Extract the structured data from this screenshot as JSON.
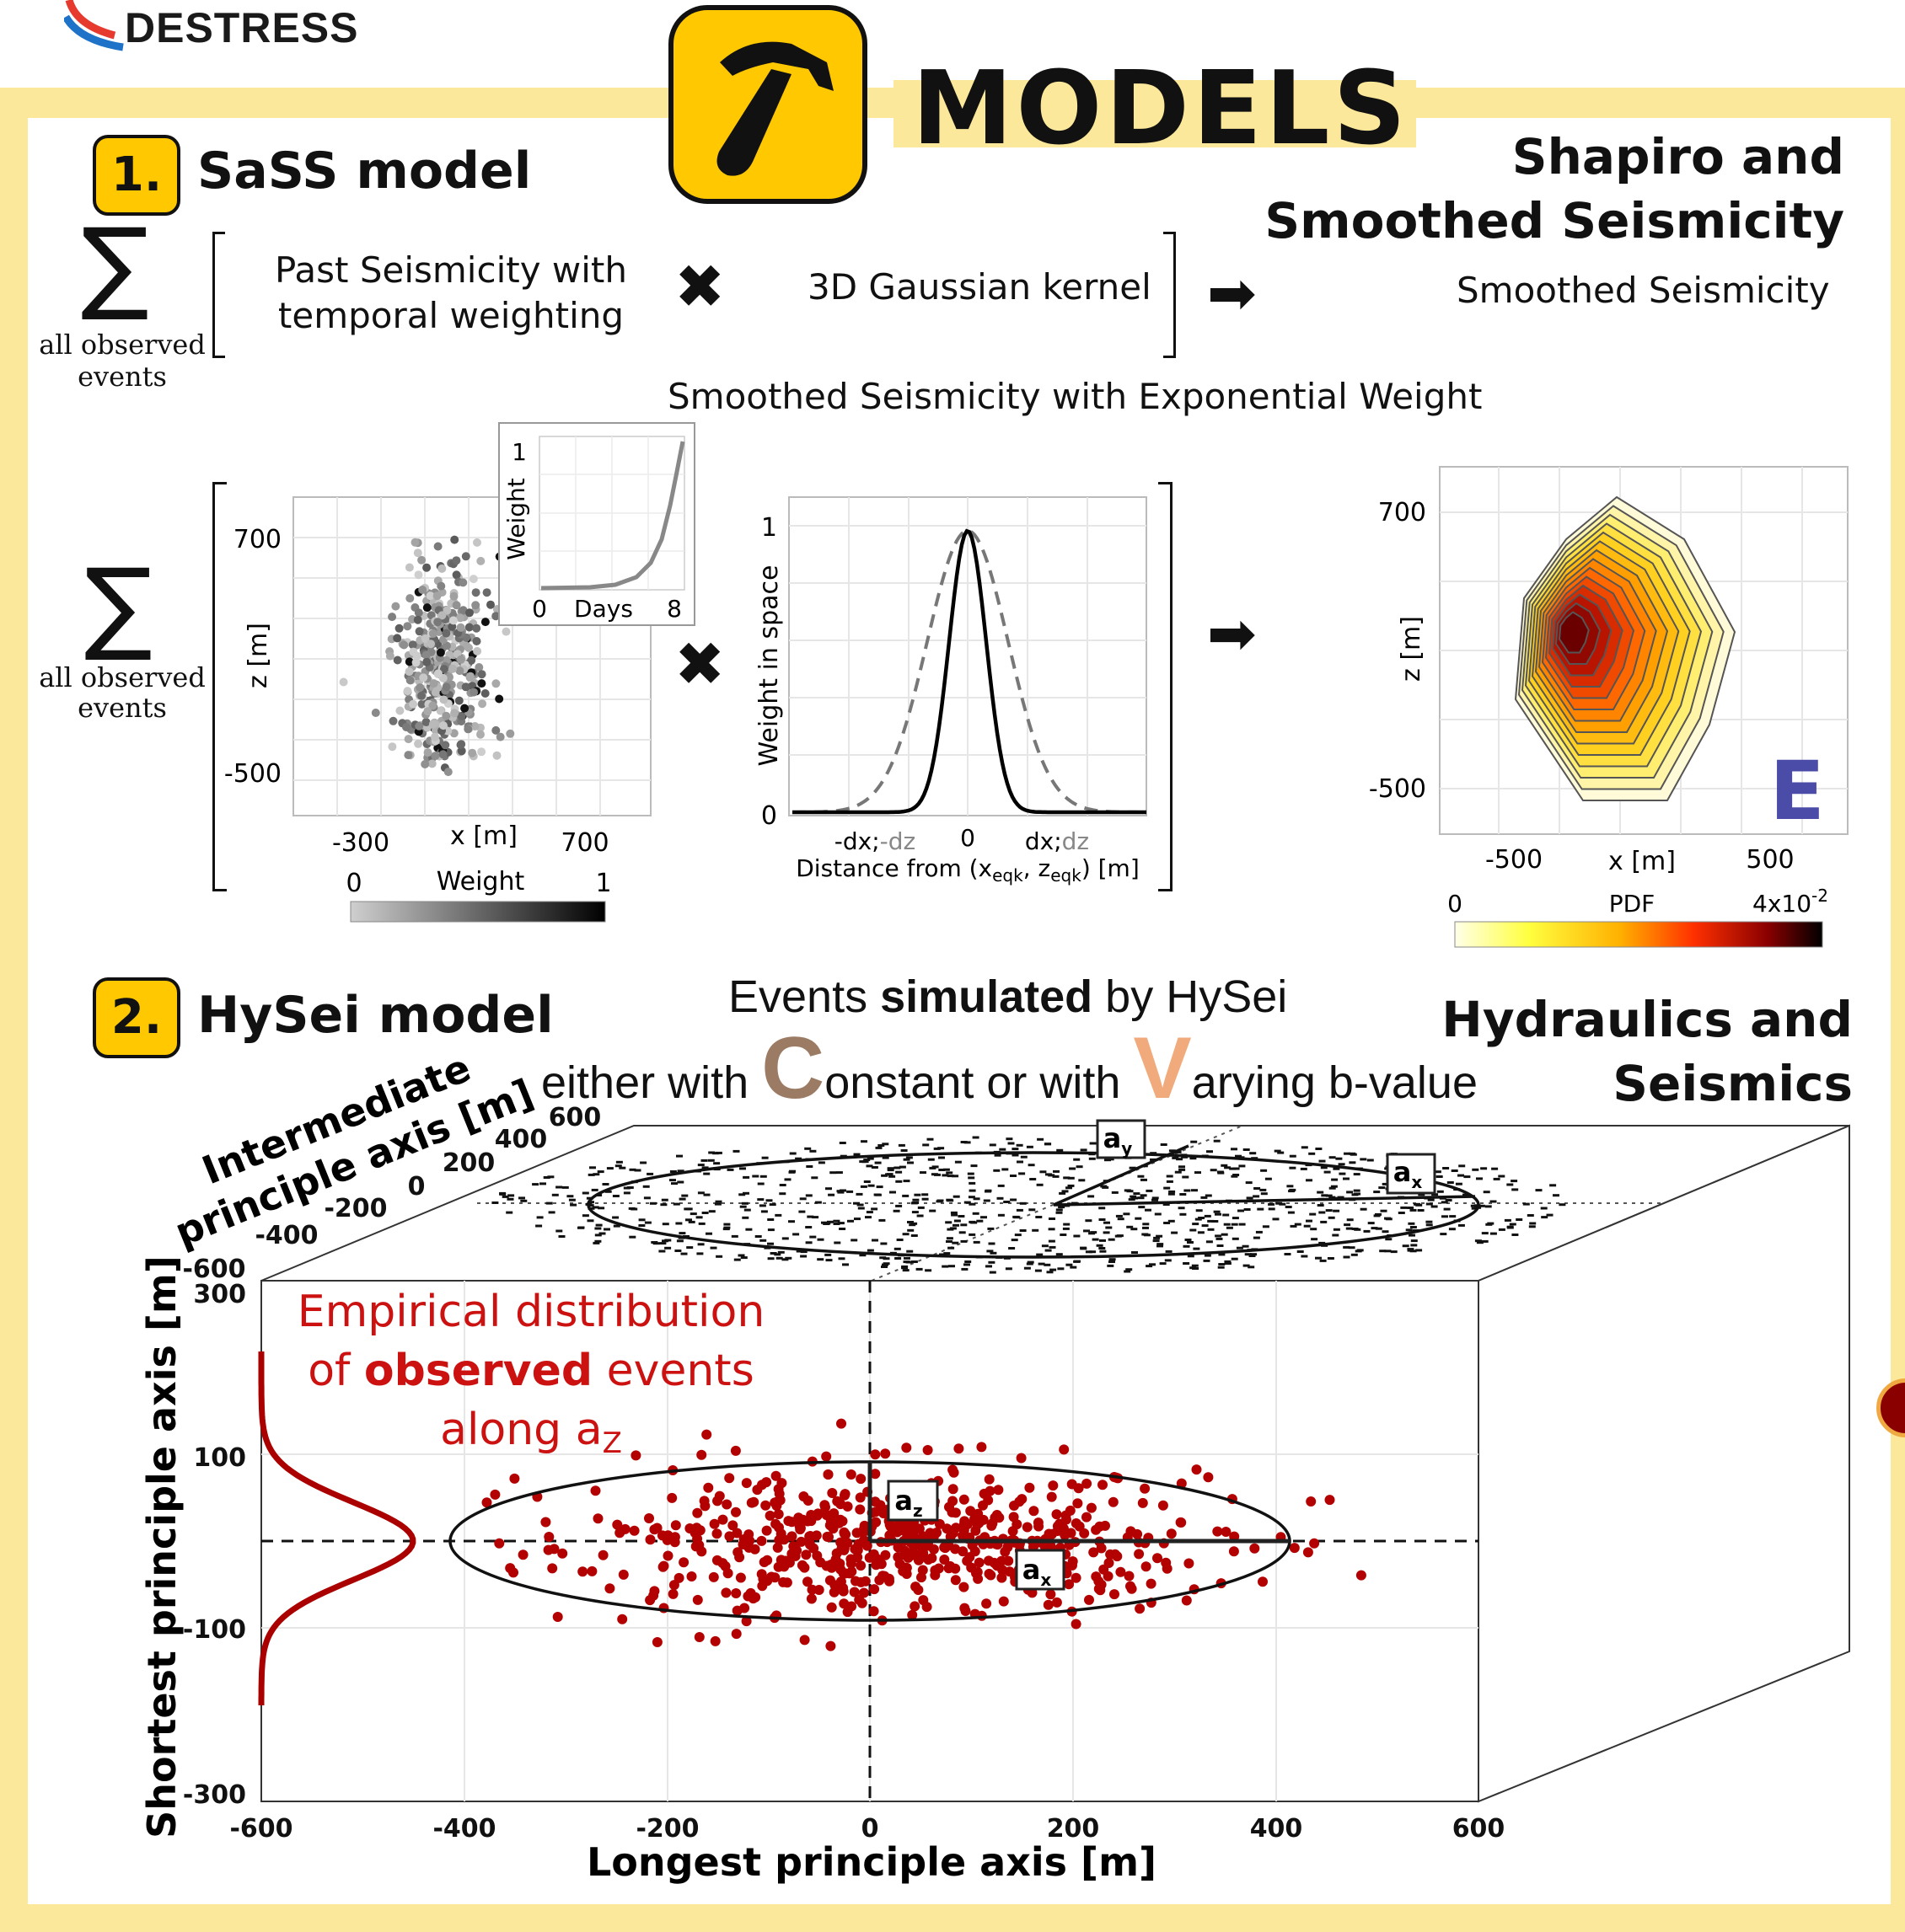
{
  "logo": {
    "name": "DESTRESS"
  },
  "title": "MODELS",
  "section1": {
    "number": "1.",
    "title": "SaSS model",
    "right_title_line1": "Shapiro and",
    "right_title_line2": "Smoothed Seismicity",
    "formula": {
      "sum_symbol": "∑",
      "sum_label_line1": "all observed",
      "sum_label_line2": "events",
      "term1_line1": "Past Seismicity with",
      "term1_line2": "temporal weighting",
      "times": "✖",
      "term2": "3D Gaussian kernel",
      "arrow": "➡",
      "result": "Smoothed Seismicity"
    },
    "plot_title": "Smoothed Seismicity with Exponential Weight",
    "panel_sum_label_line1": "all observed",
    "panel_sum_label_line2": "events",
    "scatter": {
      "xlabel": "x [m]",
      "ylabel": "z [m]",
      "xticks": [
        "-300",
        "700"
      ],
      "yticks": [
        "700",
        "-500"
      ],
      "colorbar_label": "Weight",
      "colorbar_min": "0",
      "colorbar_max": "1"
    },
    "inset": {
      "xlabel": "Days",
      "ylabel": "Weight",
      "xticks": [
        "0",
        "8"
      ],
      "yticks": [
        "1"
      ]
    },
    "kernel": {
      "ylabel": "Weight in space",
      "yticks": [
        "1",
        "0"
      ],
      "xtick_left_a": "-dx;",
      "xtick_left_b": "-dz",
      "xtick_mid": "0",
      "xtick_right_a": "dx;",
      "xtick_right_b": "dz",
      "xlabel_a": "Distance from (x",
      "xlabel_sub1": "eqk",
      "xlabel_b": ", z",
      "xlabel_sub2": "eqk",
      "xlabel_c": ") [m]"
    },
    "pdf": {
      "xlabel": "x [m]",
      "ylabel": "z [m]",
      "xticks": [
        "-500",
        "500"
      ],
      "yticks": [
        "700",
        "-500"
      ],
      "colorbar_label": "PDF",
      "colorbar_min": "0",
      "colorbar_max": "4x10",
      "colorbar_max_exp": "-2",
      "panel_letter": "E"
    }
  },
  "section2": {
    "number": "2.",
    "title": "HySei model",
    "right_title_line1": "Hydraulics and",
    "right_title_line2": "Seismics",
    "subtitle_a": "Events ",
    "subtitle_b": "simulated",
    "subtitle_c": " by HySei",
    "line2_a": "either with ",
    "line2_c_letter": "C",
    "line2_b": "onstant or with ",
    "line2_v_letter": "V",
    "line2_d": "arying b-value",
    "top_axis_label_line1": "Intermediate",
    "top_axis_label_line2": "principle axis [m]",
    "top_ticks": [
      "600",
      "400",
      "200",
      "0",
      "-200",
      "-400",
      "-600"
    ],
    "front_ylabel": "Shortest principle axis [m]",
    "front_xlabel": "Longest principle axis [m]",
    "front_yticks": [
      "300",
      "100",
      "-100",
      "-300"
    ],
    "front_xticks": [
      "-600",
      "-400",
      "-200",
      "0",
      "200",
      "400",
      "600"
    ],
    "annotation_line1": "Empirical distribution",
    "annotation_line2a": "of ",
    "annotation_line2b": "observed",
    "annotation_line2c": " events",
    "annotation_line3": "along a",
    "annotation_line3_sub": "Z",
    "labels": {
      "ay": "a",
      "ay_sub": "y",
      "ax_top": "a",
      "ax_top_sub": "x",
      "az": "a",
      "az_sub": "z",
      "ax": "a",
      "ax_sub": "x"
    }
  },
  "colors": {
    "accent_yellow": "#ffc800",
    "frame_yellow": "#fce89a",
    "dark_red": "#b30000",
    "constant_brown": "#9c7b64",
    "varying_orange": "#f0aa7c",
    "panel_letter_blue": "#4b4ba8"
  }
}
